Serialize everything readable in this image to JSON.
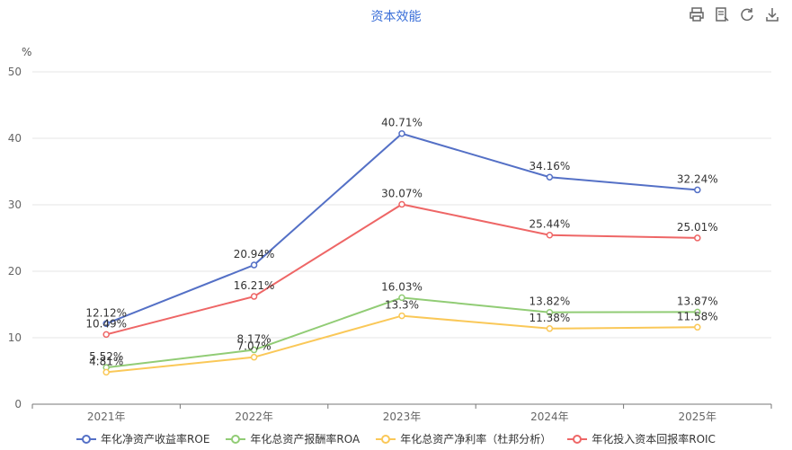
{
  "chart_data": {
    "type": "line",
    "title": "资本效能",
    "unit": "%",
    "categories": [
      "2021年",
      "2022年",
      "2023年",
      "2024年",
      "2025年"
    ],
    "ylim": [
      0,
      50
    ],
    "yticks": [
      0,
      10,
      20,
      30,
      40,
      50
    ],
    "grid": true,
    "legend": "bottom",
    "series": [
      {
        "name": "年化净资产收益率ROE",
        "color": "#5470c6",
        "values": [
          12.12,
          20.94,
          40.71,
          34.16,
          32.24
        ],
        "labels": [
          "12.12%",
          "20.94%",
          "40.71%",
          "34.16%",
          "32.24%"
        ]
      },
      {
        "name": "年化总资产报酬率ROA",
        "color": "#91cc75",
        "values": [
          5.52,
          8.17,
          16.03,
          13.82,
          13.87
        ],
        "labels": [
          "5.52%",
          "8.17%",
          "16.03%",
          "13.82%",
          "13.87%"
        ]
      },
      {
        "name": "年化总资产净利率（杜邦分析）",
        "color": "#fac858",
        "values": [
          4.81,
          7.07,
          13.3,
          11.38,
          11.58
        ],
        "labels": [
          "4.81%",
          "7.07%",
          "13.3%",
          "11.38%",
          "11.58%"
        ]
      },
      {
        "name": "年化投入资本回报率ROIC",
        "color": "#ee6666",
        "values": [
          10.49,
          16.21,
          30.07,
          25.44,
          25.01
        ],
        "labels": [
          "10.49%",
          "16.21%",
          "30.07%",
          "25.44%",
          "25.01%"
        ]
      }
    ]
  },
  "toolbar": {
    "icons": [
      "print-icon",
      "data-view-icon",
      "refresh-icon",
      "download-icon"
    ]
  }
}
